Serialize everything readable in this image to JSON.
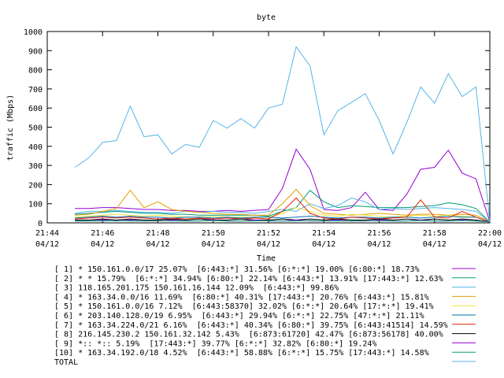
{
  "chart_data": {
    "type": "line",
    "title": "byte",
    "xlabel": "Time",
    "ylabel": "traffic (Mbps)",
    "ylim": [
      0,
      1000
    ],
    "yticks": [
      0,
      100,
      200,
      300,
      400,
      500,
      600,
      700,
      800,
      900,
      1000
    ],
    "xlim": [
      "21:44",
      "22:00"
    ],
    "xticks": [
      {
        "time": "21:44",
        "date": "04/12"
      },
      {
        "time": "21:46",
        "date": "04/12"
      },
      {
        "time": "21:48",
        "date": "04/12"
      },
      {
        "time": "21:50",
        "date": "04/12"
      },
      {
        "time": "21:52",
        "date": "04/12"
      },
      {
        "time": "21:54",
        "date": "04/12"
      },
      {
        "time": "21:56",
        "date": "04/12"
      },
      {
        "time": "21:58",
        "date": "04/12"
      },
      {
        "time": "22:00",
        "date": "04/12"
      }
    ],
    "x": [
      "21:45:00",
      "21:45:30",
      "21:46:00",
      "21:46:30",
      "21:47:00",
      "21:47:30",
      "21:48:00",
      "21:48:30",
      "21:49:00",
      "21:49:30",
      "21:50:00",
      "21:50:30",
      "21:51:00",
      "21:51:30",
      "21:52:00",
      "21:52:30",
      "21:53:00",
      "21:53:30",
      "21:54:00",
      "21:54:30",
      "21:55:00",
      "21:55:30",
      "21:56:00",
      "21:56:30",
      "21:57:00",
      "21:57:30",
      "21:58:00",
      "21:58:30",
      "21:59:00",
      "21:59:30",
      "22:00:00"
    ],
    "grid": false,
    "legend_position": "bottom",
    "series": [
      {
        "name": "[ 1] * 150.161.0.0/17 25.07%  [6:443:*] 31.56% [6:*:*] 19.00% [6:80:*] 18.73%",
        "color": "#9500d3",
        "values": [
          75,
          75,
          80,
          80,
          75,
          70,
          70,
          65,
          65,
          60,
          60,
          65,
          60,
          65,
          70,
          180,
          385,
          280,
          70,
          65,
          80,
          160,
          70,
          65,
          150,
          280,
          290,
          380,
          260,
          230,
          5
        ]
      },
      {
        "name": "[ 2] * * 15.79%  [6:*:*] 34.94% [6:80:*] 22.14% [6:443:*] 13.91% [17:443:*] 12.63%",
        "color": "#009e73",
        "values": [
          45,
          50,
          55,
          60,
          55,
          50,
          50,
          45,
          45,
          40,
          40,
          40,
          40,
          40,
          35,
          60,
          80,
          170,
          110,
          80,
          90,
          85,
          80,
          80,
          80,
          85,
          90,
          105,
          95,
          75,
          5
        ]
      },
      {
        "name": "[ 3] 118.165.201.175 150.161.16.144 12.09%  [6:443:*] 99.86%",
        "color": "#56b4e9",
        "values": [
          50,
          60,
          60,
          65,
          60,
          55,
          55,
          50,
          60,
          55,
          60,
          55,
          55,
          50,
          60,
          70,
          60,
          100,
          75,
          90,
          130,
          110,
          70,
          75,
          70,
          75,
          80,
          75,
          70,
          60,
          5
        ]
      },
      {
        "name": "[ 4] * 163.34.0.0/16 11.69%  [6:80:*] 40.31% [17:443:*] 20.76% [6:443:*] 15.81%",
        "color": "#e69f00",
        "values": [
          40,
          45,
          60,
          75,
          170,
          80,
          110,
          70,
          60,
          55,
          50,
          45,
          45,
          40,
          40,
          100,
          175,
          90,
          50,
          45,
          40,
          45,
          50,
          45,
          40,
          45,
          45,
          40,
          45,
          40,
          5
        ]
      },
      {
        "name": "[ 5] * 150.161.0.0/16 7.12%  [6:443:58370] 32.02% [6:*:*] 20.64% [17:*:*] 19.41%",
        "color": "#f0e442",
        "values": [
          30,
          35,
          40,
          45,
          40,
          35,
          40,
          35,
          30,
          30,
          35,
          30,
          30,
          30,
          30,
          50,
          80,
          60,
          40,
          35,
          45,
          40,
          35,
          30,
          35,
          40,
          35,
          40,
          35,
          30,
          5
        ]
      },
      {
        "name": "[ 6] * 203.140.128.0/19 6.95%  [6:443:*] 29.94% [6:*:*] 22.75% [47:*:*] 21.11%",
        "color": "#0072b2",
        "values": [
          25,
          30,
          35,
          30,
          35,
          30,
          30,
          25,
          30,
          30,
          25,
          30,
          25,
          30,
          30,
          25,
          30,
          35,
          30,
          25,
          30,
          30,
          25,
          30,
          30,
          25,
          30,
          35,
          30,
          30,
          5
        ]
      },
      {
        "name": "[ 7] * 163.34.224.0/21 6.16%  [6:443:*] 40.34% [6:80:*] 39.75% [6:443:41514] 14.59%",
        "color": "#e51e10",
        "values": [
          20,
          25,
          30,
          25,
          30,
          25,
          20,
          25,
          20,
          25,
          20,
          25,
          20,
          25,
          20,
          60,
          130,
          50,
          25,
          20,
          30,
          25,
          20,
          25,
          30,
          120,
          30,
          25,
          60,
          30,
          5
        ]
      },
      {
        "name": "[ 8] 216.145.230.2 150.161.32.142 5.43%  [6:873:61720] 42.47% [6:873:56178] 40.00%",
        "color": "#000000",
        "values": [
          15,
          15,
          20,
          15,
          20,
          15,
          15,
          20,
          15,
          20,
          15,
          15,
          20,
          15,
          15,
          20,
          15,
          20,
          15,
          20,
          15,
          15,
          20,
          15,
          20,
          15,
          20,
          15,
          20,
          15,
          5
        ]
      },
      {
        "name": "[ 9] *:: *:: 5.19%  [17:443:*] 39.77% [6:*:*] 32.82% [6:80:*] 19.24%",
        "color": "#9500d3",
        "values": [
          10,
          10,
          15,
          10,
          15,
          10,
          10,
          15,
          10,
          10,
          15,
          10,
          10,
          15,
          10,
          10,
          15,
          10,
          10,
          15,
          10,
          10,
          15,
          10,
          10,
          15,
          10,
          10,
          15,
          10,
          5
        ]
      },
      {
        "name": "[10] * 163.34.192.0/18 4.52%  [6:443:*] 58.88% [6:*:*] 15.75% [17:443:*] 14.58%",
        "color": "#009e73",
        "values": [
          10,
          10,
          10,
          12,
          10,
          10,
          12,
          10,
          10,
          10,
          12,
          10,
          10,
          10,
          12,
          10,
          10,
          12,
          10,
          10,
          10,
          12,
          10,
          10,
          10,
          12,
          10,
          10,
          12,
          10,
          5
        ]
      },
      {
        "name": "TOTAL",
        "color": "#56b4e9",
        "values": [
          290,
          340,
          420,
          430,
          610,
          450,
          460,
          360,
          410,
          395,
          535,
          495,
          545,
          495,
          600,
          620,
          920,
          820,
          460,
          585,
          630,
          675,
          535,
          360,
          525,
          710,
          625,
          780,
          660,
          710,
          5
        ]
      }
    ]
  }
}
